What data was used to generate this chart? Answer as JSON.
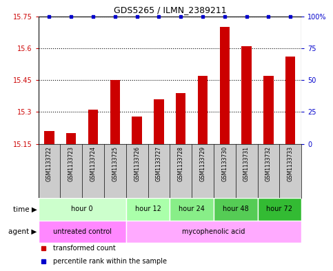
{
  "title": "GDS5265 / ILMN_2389211",
  "samples": [
    "GSM1133722",
    "GSM1133723",
    "GSM1133724",
    "GSM1133725",
    "GSM1133726",
    "GSM1133727",
    "GSM1133728",
    "GSM1133729",
    "GSM1133730",
    "GSM1133731",
    "GSM1133732",
    "GSM1133733"
  ],
  "bar_values": [
    15.21,
    15.2,
    15.31,
    15.45,
    15.28,
    15.36,
    15.39,
    15.47,
    15.7,
    15.61,
    15.47,
    15.56
  ],
  "percentile_values": [
    100,
    100,
    100,
    100,
    100,
    100,
    100,
    100,
    100,
    100,
    100,
    100
  ],
  "bar_color": "#cc0000",
  "percentile_color": "#0000cc",
  "ylim_left": [
    15.15,
    15.75
  ],
  "ylim_right": [
    0,
    100
  ],
  "yticks_left": [
    15.15,
    15.3,
    15.45,
    15.6,
    15.75
  ],
  "ytick_labels_left": [
    "15.15",
    "15.3",
    "15.45",
    "15.6",
    "15.75"
  ],
  "yticks_right": [
    0,
    25,
    50,
    75,
    100
  ],
  "ytick_labels_right": [
    "0",
    "25",
    "50",
    "75",
    "100%"
  ],
  "time_groups": [
    {
      "label": "hour 0",
      "start": 0,
      "end": 4,
      "color": "#ccffcc"
    },
    {
      "label": "hour 12",
      "start": 4,
      "end": 6,
      "color": "#aaffaa"
    },
    {
      "label": "hour 24",
      "start": 6,
      "end": 8,
      "color": "#88ee88"
    },
    {
      "label": "hour 48",
      "start": 8,
      "end": 10,
      "color": "#55cc55"
    },
    {
      "label": "hour 72",
      "start": 10,
      "end": 12,
      "color": "#33bb33"
    }
  ],
  "agent_groups": [
    {
      "label": "untreated control",
      "start": 0,
      "end": 4,
      "color": "#ff88ff"
    },
    {
      "label": "mycophenolic acid",
      "start": 4,
      "end": 12,
      "color": "#ffaaff"
    }
  ],
  "background_color": "#ffffff",
  "sample_bg_color": "#cccccc",
  "legend_items": [
    {
      "label": "transformed count",
      "color": "#cc0000",
      "marker": "s"
    },
    {
      "label": "percentile rank within the sample",
      "color": "#0000cc",
      "marker": "s"
    }
  ]
}
